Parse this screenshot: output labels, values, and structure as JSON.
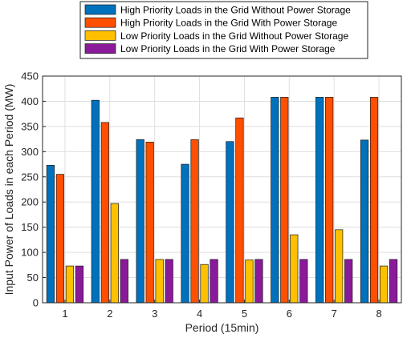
{
  "chart_data": {
    "type": "bar",
    "categories": [
      "1",
      "2",
      "3",
      "4",
      "5",
      "6",
      "7",
      "8"
    ],
    "series": [
      {
        "name": "High Priority Loads in the Grid Without Power Storage",
        "color": "#0072BD",
        "values": [
          273,
          402,
          324,
          275,
          320,
          408,
          408,
          323
        ]
      },
      {
        "name": "High Priority Loads in the Grid With Power Storage",
        "color": "#FF4F00",
        "values": [
          255,
          358,
          319,
          324,
          367,
          408,
          408,
          408
        ]
      },
      {
        "name": "Low Priority Loads in the Grid Without Power Storage",
        "color": "#FFC000",
        "values": [
          73,
          197,
          86,
          76,
          85,
          135,
          145,
          73
        ]
      },
      {
        "name": "Low Priority Loads in the Grid With Power Storage",
        "color": "#8B1A9B",
        "values": [
          73,
          86,
          86,
          86,
          86,
          86,
          86,
          86
        ]
      }
    ],
    "xlabel": "Period (15min)",
    "ylabel": "Input Power of Loads in each Period (MW)",
    "ylim": [
      0,
      450
    ],
    "yticks": [
      0,
      50,
      100,
      150,
      200,
      250,
      300,
      350,
      400,
      450
    ],
    "grid": true,
    "legend_position": "top"
  }
}
